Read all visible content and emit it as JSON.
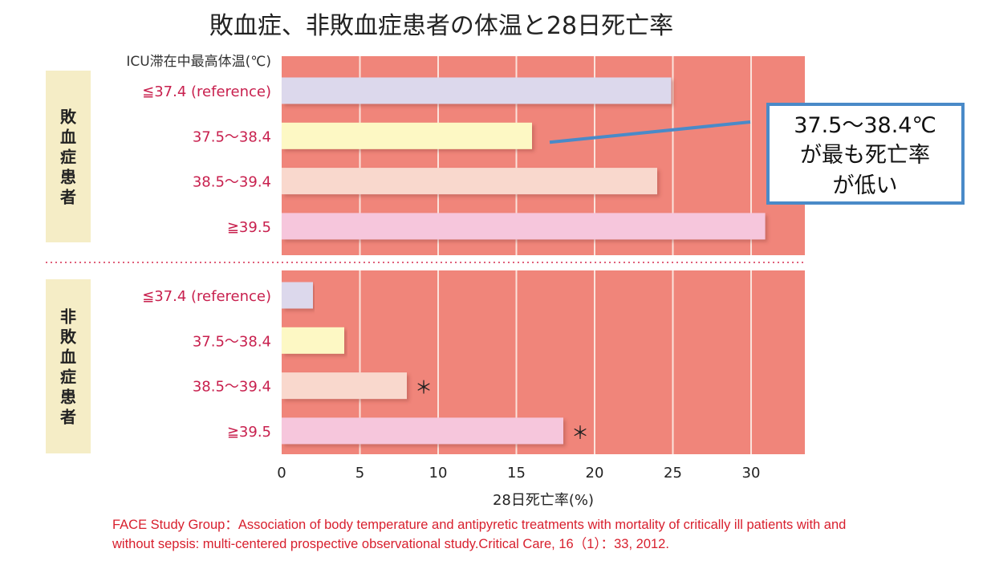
{
  "chart_data": {
    "type": "bar",
    "orientation": "horizontal",
    "title": "敗血症、非敗血症患者の体温と28日死亡率",
    "ylabel": "ICU滞在中最高体温(℃)",
    "xlabel": "28日死亡率(%)",
    "xlim": [
      0,
      33.5
    ],
    "xticks": [
      0,
      5,
      10,
      15,
      20,
      25,
      30
    ],
    "grid": true,
    "colors": {
      "plot_bg": "#f0857a",
      "grid": "#fbe3dc",
      "category_text": "#c8204e",
      "group_box": "#f5edc6",
      "callout_border": "#4a8ac8",
      "divider": "#e0607a",
      "bar_colors": [
        "#dcd8ec",
        "#fdf8c4",
        "#f9d8cd",
        "#f6c6dc"
      ]
    },
    "categories": [
      "≦37.4 (reference)",
      "37.5〜38.4",
      "38.5〜39.4",
      "≧39.5"
    ],
    "groups": [
      {
        "name": "敗血症患者",
        "values": [
          24.9,
          16.0,
          24.0,
          30.9
        ],
        "significance": [
          "",
          "",
          "",
          ""
        ]
      },
      {
        "name": "非敗血症患者",
        "values": [
          2.0,
          4.0,
          8.0,
          18.0
        ],
        "significance": [
          "",
          "",
          "＊",
          "＊"
        ]
      }
    ],
    "annotations": [
      {
        "text_lines": [
          "37.5〜38.4℃",
          "が最も死亡率",
          "が低い"
        ],
        "points_to": {
          "group": 0,
          "category": 1
        }
      }
    ]
  },
  "citation": {
    "line1": "FACE Study Group：Association of body temperature and antipyretic treatments with mortality of critically ill patients with and",
    "line2": "without sepsis: multi-centered prospective observational study.Critical Care, 16（1）：33, 2012."
  }
}
